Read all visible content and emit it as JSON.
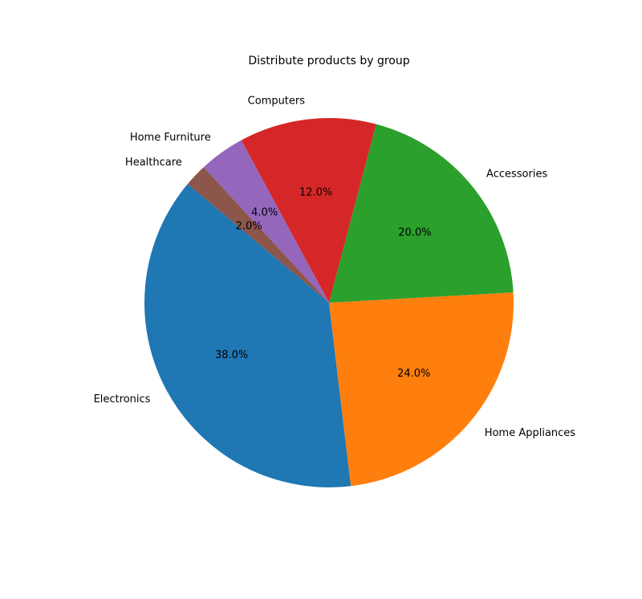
{
  "chart_data": {
    "type": "pie",
    "title": "Distribute products by group",
    "slices": [
      {
        "label": "Electronics",
        "value": 38.0,
        "pct_label": "38.0%",
        "color": "#1f77b4"
      },
      {
        "label": "Home Appliances",
        "value": 24.0,
        "pct_label": "24.0%",
        "color": "#ff7f0e"
      },
      {
        "label": "Accessories",
        "value": 20.0,
        "pct_label": "20.0%",
        "color": "#2ca02c"
      },
      {
        "label": "Computers",
        "value": 12.0,
        "pct_label": "12.0%",
        "color": "#d62728"
      },
      {
        "label": "Home Furniture",
        "value": 4.0,
        "pct_label": "4.0%",
        "color": "#9467bd"
      },
      {
        "label": "Healthcare",
        "value": 2.0,
        "pct_label": "2.0%",
        "color": "#8c564b"
      }
    ],
    "start_angle_deg": 140,
    "direction": "counterclockwise",
    "legend": "none"
  }
}
